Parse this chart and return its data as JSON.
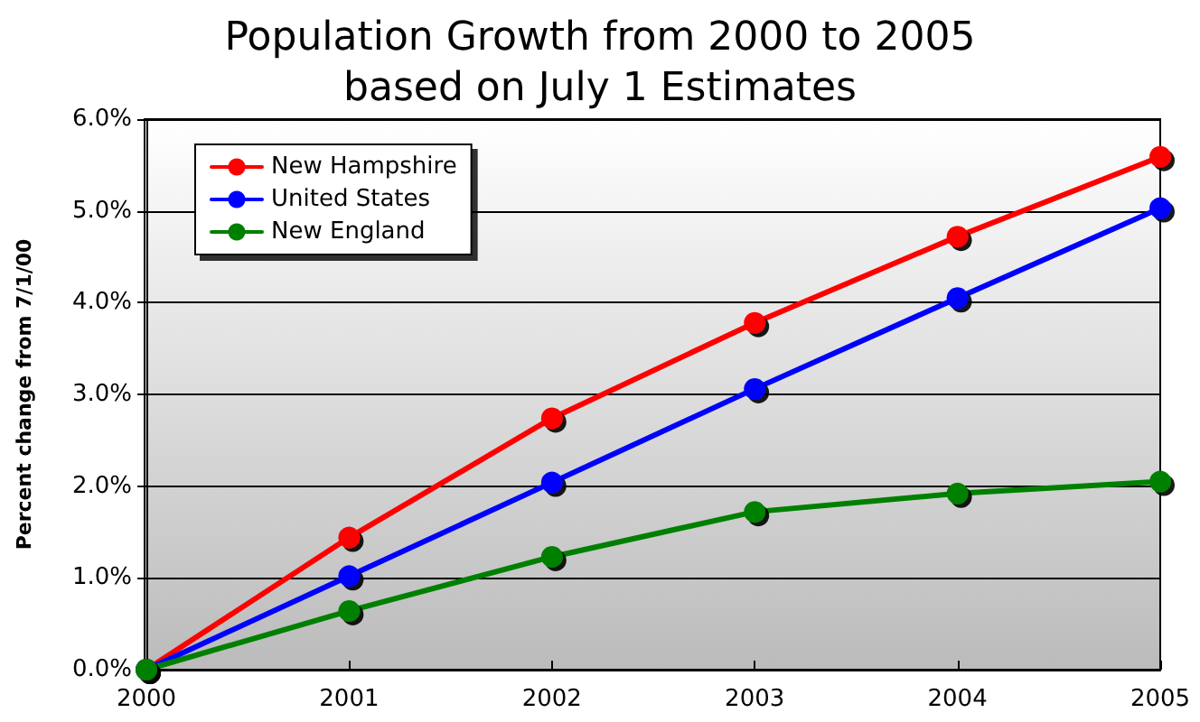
{
  "chart_data": {
    "type": "line",
    "title": "Population Growth from 2000 to 2005\nbased on July 1 Estimates",
    "ylabel": "Percent change from 7/1/00",
    "categories": [
      "2000",
      "2001",
      "2002",
      "2003",
      "2004",
      "2005"
    ],
    "series": [
      {
        "name": "New Hampshire",
        "color": "#ff0000",
        "values": [
          0,
          1.44,
          2.74,
          3.78,
          4.72,
          5.59
        ]
      },
      {
        "name": "United States",
        "color": "#0000ff",
        "values": [
          0,
          1.02,
          2.04,
          3.06,
          4.05,
          5.03
        ]
      },
      {
        "name": "New England",
        "color": "#008000",
        "values": [
          0,
          0.64,
          1.23,
          1.72,
          1.92,
          2.05
        ]
      }
    ],
    "ylim": [
      0,
      6
    ],
    "yticks": [
      {
        "value": 0,
        "label": "0.0%"
      },
      {
        "value": 1,
        "label": "1.0%"
      },
      {
        "value": 2,
        "label": "2.0%"
      },
      {
        "value": 3,
        "label": "3.0%"
      },
      {
        "value": 4,
        "label": "4.0%"
      },
      {
        "value": 5,
        "label": "5.0%"
      },
      {
        "value": 6,
        "label": "6.0%"
      }
    ],
    "grid": "y",
    "legend": "top left",
    "marker": "circle",
    "line_style": "solid"
  }
}
